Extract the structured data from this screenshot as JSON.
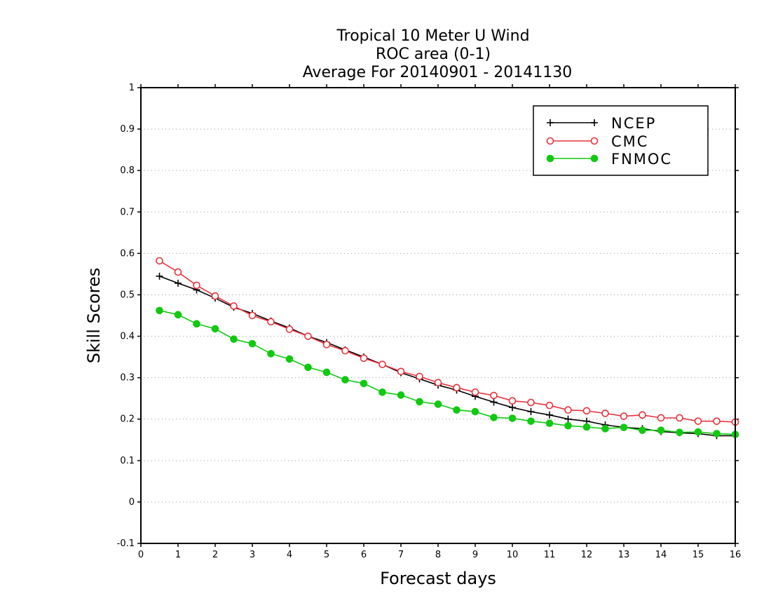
{
  "chart_data": {
    "type": "line",
    "title": [
      "Tropical 10 Meter U Wind",
      "ROC area (0-1)",
      "Average For 20140901 - 20141130"
    ],
    "xlabel": "Forecast days",
    "ylabel": "Skill Scores",
    "xlim": [
      0,
      16
    ],
    "ylim": [
      -0.1,
      1
    ],
    "xticks": [
      0,
      1,
      2,
      3,
      4,
      5,
      6,
      7,
      8,
      9,
      10,
      11,
      12,
      13,
      14,
      15,
      16
    ],
    "xtick_labels": [
      "0",
      "1",
      "2",
      "3",
      "4",
      "5",
      "6",
      "7",
      "8",
      "9",
      "10",
      "11",
      "12",
      "13",
      "14",
      "15",
      "16"
    ],
    "yticks": [
      -0.1,
      0,
      0.1,
      0.2,
      0.3,
      0.4,
      0.5,
      0.6,
      0.7,
      0.8,
      0.9,
      1
    ],
    "ytick_labels": [
      "-0.1",
      "0",
      "0.1",
      "0.2",
      "0.3",
      "0.4",
      "0.5",
      "0.6",
      "0.7",
      "0.8",
      "0.9",
      "1"
    ],
    "grid": "horizontal-dotted",
    "legend_position": "top-right",
    "x": [
      0.5,
      1,
      1.5,
      2,
      2.5,
      3,
      3.5,
      4,
      4.5,
      5,
      5.5,
      6,
      6.5,
      7,
      7.5,
      8,
      8.5,
      9,
      9.5,
      10,
      10.5,
      11,
      11.5,
      12,
      12.5,
      13,
      13.5,
      14,
      14.5,
      15,
      15.5,
      16
    ],
    "series": [
      {
        "name": "NCEP",
        "marker": "plus",
        "color": "#000000",
        "values": [
          0.545,
          0.528,
          0.512,
          0.492,
          0.47,
          0.455,
          0.437,
          0.42,
          0.4,
          0.385,
          0.367,
          0.35,
          0.332,
          0.312,
          0.297,
          0.282,
          0.27,
          0.255,
          0.241,
          0.228,
          0.218,
          0.21,
          0.2,
          0.195,
          0.186,
          0.18,
          0.177,
          0.17,
          0.167,
          0.165,
          0.16,
          0.16
        ]
      },
      {
        "name": "CMC",
        "marker": "open-circle",
        "color": "#e8333c",
        "values": [
          0.582,
          0.555,
          0.523,
          0.497,
          0.473,
          0.45,
          0.435,
          0.417,
          0.4,
          0.38,
          0.365,
          0.347,
          0.332,
          0.315,
          0.303,
          0.288,
          0.276,
          0.265,
          0.257,
          0.244,
          0.24,
          0.233,
          0.222,
          0.22,
          0.214,
          0.207,
          0.21,
          0.203,
          0.203,
          0.195,
          0.195,
          0.193
        ]
      },
      {
        "name": "FNMOC",
        "marker": "filled-circle",
        "color": "#11c911",
        "values": [
          0.462,
          0.452,
          0.43,
          0.418,
          0.393,
          0.382,
          0.358,
          0.345,
          0.325,
          0.313,
          0.295,
          0.286,
          0.265,
          0.258,
          0.242,
          0.236,
          0.222,
          0.218,
          0.204,
          0.202,
          0.195,
          0.19,
          0.184,
          0.181,
          0.177,
          0.18,
          0.173,
          0.173,
          0.168,
          0.169,
          0.165,
          0.163
        ]
      }
    ]
  }
}
